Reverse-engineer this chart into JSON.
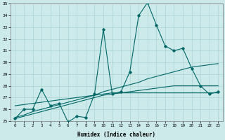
{
  "xlabel": "Humidex (Indice chaleur)",
  "background_color": "#cceaea",
  "grid_color": "#aad4d4",
  "line_color": "#006666",
  "x_values": [
    0,
    1,
    2,
    3,
    4,
    5,
    6,
    7,
    8,
    9,
    10,
    11,
    12,
    13,
    14,
    15,
    16,
    17,
    18,
    19,
    20,
    21,
    22,
    23
  ],
  "y_data": [
    25.2,
    26.0,
    26.0,
    27.7,
    26.3,
    26.5,
    24.9,
    25.4,
    25.3,
    27.3,
    32.8,
    27.3,
    27.5,
    29.2,
    34.0,
    35.1,
    33.2,
    31.4,
    31.0,
    31.2,
    29.5,
    28.0,
    27.3,
    27.5
  ],
  "trend1": [
    26.3,
    26.4,
    26.5,
    26.6,
    26.7,
    26.8,
    26.9,
    27.0,
    27.1,
    27.2,
    27.3,
    27.4,
    27.4,
    27.4,
    27.4,
    27.4,
    27.4,
    27.4,
    27.4,
    27.4,
    27.4,
    27.4,
    27.4,
    27.4
  ],
  "trend2": [
    25.3,
    25.5,
    25.8,
    26.0,
    26.2,
    26.4,
    26.6,
    26.8,
    27.0,
    27.2,
    27.5,
    27.7,
    27.9,
    28.1,
    28.3,
    28.6,
    28.8,
    29.0,
    29.2,
    29.4,
    29.6,
    29.7,
    29.8,
    29.9
  ],
  "trend3": [
    25.2,
    25.4,
    25.6,
    25.8,
    26.0,
    26.2,
    26.4,
    26.6,
    26.8,
    27.0,
    27.2,
    27.3,
    27.4,
    27.5,
    27.6,
    27.7,
    27.8,
    27.9,
    28.0,
    28.0,
    28.0,
    28.0,
    28.0,
    28.0
  ],
  "ylim": [
    25,
    35
  ],
  "xlim": [
    -0.5,
    23.5
  ],
  "yticks": [
    25,
    26,
    27,
    28,
    29,
    30,
    31,
    32,
    33,
    34,
    35
  ],
  "xticks": [
    0,
    1,
    2,
    3,
    4,
    5,
    6,
    7,
    8,
    9,
    10,
    11,
    12,
    13,
    14,
    15,
    16,
    17,
    18,
    19,
    20,
    21,
    22,
    23
  ]
}
